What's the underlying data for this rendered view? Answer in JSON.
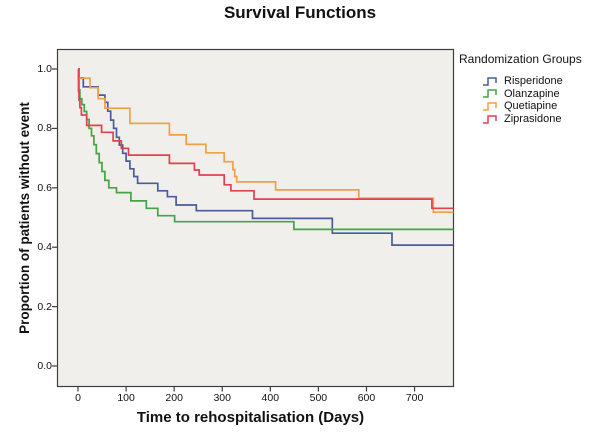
{
  "title": "Survival Functions",
  "chart_data": {
    "type": "line",
    "subtype": "kaplan-meier-step-curves",
    "title": "Survival Functions",
    "xlabel": "Time to rehospitalisation (Days)",
    "ylabel": "Proportion of patients without event",
    "xlim": [
      -42,
      781
    ],
    "ylim": [
      -0.065,
      1.065
    ],
    "grid": false,
    "plot_bg": "#f0efec",
    "axis_color": "#3d3d3d",
    "legend_title": "Randomization Groups",
    "legend_position": "right",
    "x_ticks": [
      {
        "label": "0",
        "value": 0
      },
      {
        "label": "100",
        "value": 100
      },
      {
        "label": "200",
        "value": 200
      },
      {
        "label": "300",
        "value": 300
      },
      {
        "label": "400",
        "value": 400
      },
      {
        "label": "500",
        "value": 500
      },
      {
        "label": "600",
        "value": 600
      },
      {
        "label": "700",
        "value": 700
      }
    ],
    "y_ticks": [
      {
        "label": "0.0",
        "value": 0.0
      },
      {
        "label": "0.2",
        "value": 0.2
      },
      {
        "label": "0.4",
        "value": 0.4
      },
      {
        "label": "0.6",
        "value": 0.6
      },
      {
        "label": "0.8",
        "value": 0.8
      },
      {
        "label": "1.0",
        "value": 1.0
      }
    ],
    "series": [
      {
        "label": "Risperidone",
        "color": "#4a5c9b",
        "points": [
          [
            0,
            1.0
          ],
          [
            2,
            0.97
          ],
          [
            11,
            0.94
          ],
          [
            42,
            0.912
          ],
          [
            56,
            0.888
          ],
          [
            62,
            0.858
          ],
          [
            68,
            0.828
          ],
          [
            74,
            0.8
          ],
          [
            80,
            0.77
          ],
          [
            86,
            0.744
          ],
          [
            93,
            0.716
          ],
          [
            100,
            0.69
          ],
          [
            108,
            0.664
          ],
          [
            116,
            0.638
          ],
          [
            124,
            0.615
          ],
          [
            166,
            0.59
          ],
          [
            186,
            0.57
          ],
          [
            204,
            0.542
          ],
          [
            246,
            0.523
          ],
          [
            363,
            0.497
          ],
          [
            529,
            0.447
          ],
          [
            653,
            0.407
          ],
          [
            781,
            0.407
          ]
        ]
      },
      {
        "label": "Olanzapine",
        "color": "#45a445",
        "points": [
          [
            0,
            1.0
          ],
          [
            2,
            0.93
          ],
          [
            4,
            0.9
          ],
          [
            8,
            0.88
          ],
          [
            13,
            0.857
          ],
          [
            18,
            0.83
          ],
          [
            23,
            0.8
          ],
          [
            28,
            0.775
          ],
          [
            33,
            0.745
          ],
          [
            38,
            0.715
          ],
          [
            44,
            0.685
          ],
          [
            50,
            0.655
          ],
          [
            56,
            0.625
          ],
          [
            64,
            0.6
          ],
          [
            80,
            0.584
          ],
          [
            110,
            0.556
          ],
          [
            142,
            0.531
          ],
          [
            166,
            0.506
          ],
          [
            201,
            0.486
          ],
          [
            449,
            0.46
          ],
          [
            781,
            0.46
          ]
        ]
      },
      {
        "label": "Quetiapine",
        "color": "#f0a143",
        "points": [
          [
            0,
            1.0
          ],
          [
            1,
            0.969
          ],
          [
            25,
            0.937
          ],
          [
            42,
            0.9
          ],
          [
            56,
            0.868
          ],
          [
            108,
            0.817
          ],
          [
            190,
            0.778
          ],
          [
            225,
            0.746
          ],
          [
            266,
            0.718
          ],
          [
            304,
            0.688
          ],
          [
            322,
            0.661
          ],
          [
            326,
            0.638
          ],
          [
            330,
            0.62
          ],
          [
            411,
            0.593
          ],
          [
            584,
            0.565
          ],
          [
            739,
            0.518
          ],
          [
            781,
            0.518
          ]
        ]
      },
      {
        "label": "Ziprasidone",
        "color": "#e2414e",
        "points": [
          [
            0,
            1.0
          ],
          [
            1,
            0.924
          ],
          [
            2,
            0.895
          ],
          [
            4,
            0.87
          ],
          [
            7,
            0.845
          ],
          [
            18,
            0.81
          ],
          [
            49,
            0.787
          ],
          [
            73,
            0.758
          ],
          [
            90,
            0.733
          ],
          [
            105,
            0.71
          ],
          [
            190,
            0.682
          ],
          [
            242,
            0.66
          ],
          [
            252,
            0.643
          ],
          [
            304,
            0.61
          ],
          [
            318,
            0.59
          ],
          [
            366,
            0.562
          ],
          [
            736,
            0.531
          ],
          [
            781,
            0.531
          ]
        ]
      }
    ]
  }
}
